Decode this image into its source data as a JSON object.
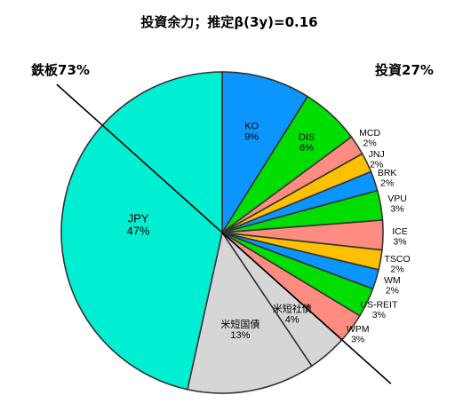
{
  "chart_data": {
    "type": "pie",
    "title": "投資余力；推定β(3y)=0.16",
    "annotations": {
      "left": "鉄板73%",
      "right": "投資27%"
    },
    "slices": [
      {
        "label": "KO",
        "pct_label": "9%",
        "value": 9,
        "color": "#0a95ff"
      },
      {
        "label": "DIS",
        "pct_label": "6%",
        "value": 6,
        "color": "#00dd00"
      },
      {
        "label": "MCD",
        "pct_label": "2%",
        "value": 2,
        "color": "#ff8c80"
      },
      {
        "label": "JNJ",
        "pct_label": "2%",
        "value": 2,
        "color": "#ffc000"
      },
      {
        "label": "BRK",
        "pct_label": "2%",
        "value": 2,
        "color": "#0a95ff"
      },
      {
        "label": "VPU",
        "pct_label": "3%",
        "value": 3,
        "color": "#00dd00"
      },
      {
        "label": "ICE",
        "pct_label": "3%",
        "value": 3,
        "color": "#ff8c80"
      },
      {
        "label": "TSCO",
        "pct_label": "2%",
        "value": 2,
        "color": "#ffc000"
      },
      {
        "label": "WM",
        "pct_label": "2%",
        "value": 2,
        "color": "#0a95ff"
      },
      {
        "label": "US-REIT",
        "pct_label": "3%",
        "value": 3,
        "color": "#00dd00"
      },
      {
        "label": "WPM",
        "pct_label": "3%",
        "value": 3,
        "color": "#ff8c80"
      },
      {
        "label": "米短社債",
        "pct_label": "4%",
        "value": 4,
        "color": "#d6d6d6"
      },
      {
        "label": "米短国債",
        "pct_label": "13%",
        "value": 13,
        "color": "#d6d6d6"
      },
      {
        "label": "JPY",
        "pct_label": "47%",
        "value": 47,
        "color": "#00eed2"
      }
    ]
  }
}
